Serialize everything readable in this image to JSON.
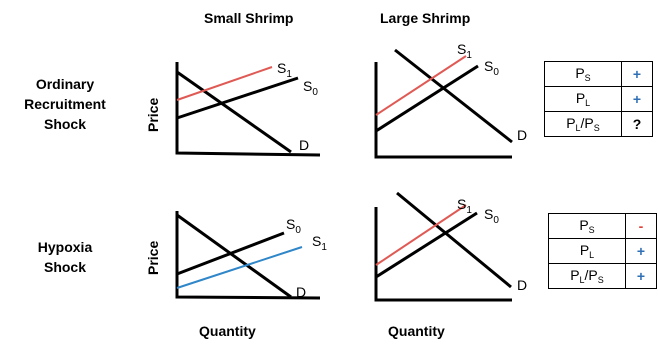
{
  "columns": {
    "small": "Small Shrimp",
    "large": "Large Shrimp"
  },
  "rows": {
    "ordinary": {
      "line1": "Ordinary",
      "line2": "Recruitment",
      "line3": "Shock"
    },
    "hypoxia": {
      "line1": "Hypoxia",
      "line2": "Shock"
    }
  },
  "axis": {
    "y": "Price",
    "x": "Quantity"
  },
  "curves": {
    "supply_initial": "S",
    "supply_initial_sub": "0",
    "supply_new": "S",
    "supply_new_sub": "1",
    "demand": "D"
  },
  "colors": {
    "base": "#000000",
    "shift_red": "#e05a55",
    "shift_blue": "#2f86c8",
    "plus": "#2f6fb5",
    "minus": "#e0413a"
  },
  "tables": {
    "ordinary": [
      {
        "var": "P",
        "sub": "S",
        "sign": "+"
      },
      {
        "var": "P",
        "sub": "L",
        "sign": "+"
      },
      {
        "var": "P",
        "sub": "L",
        "mid": "/P",
        "sub2": "S",
        "sign": "?"
      }
    ],
    "hypoxia": [
      {
        "var": "P",
        "sub": "S",
        "sign": "-"
      },
      {
        "var": "P",
        "sub": "L",
        "sign": "+"
      },
      {
        "var": "P",
        "sub": "L",
        "mid": "/P",
        "sub2": "S",
        "sign": "+"
      }
    ]
  }
}
